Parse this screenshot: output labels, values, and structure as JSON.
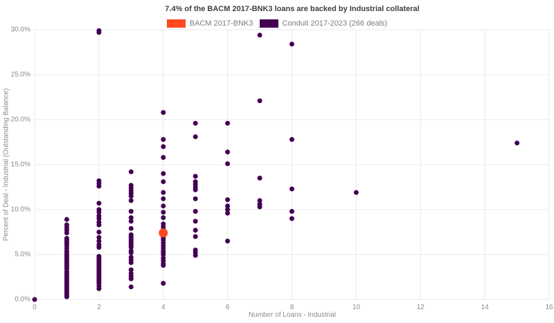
{
  "title": "7.4% of the BACM 2017-BNK3 loans are backed by Industrial collateral",
  "legend": [
    {
      "label": "BACM 2017-BNK3",
      "color": "#FF4720"
    },
    {
      "label": "Conduit 2017-2023 (266 deals)",
      "color": "#440154"
    }
  ],
  "chart_data": {
    "type": "scatter",
    "title": "7.4% of the BACM 2017-BNK3 loans are backed by Industrial collateral",
    "xlabel": "Number of Loans - Industrial",
    "ylabel": "Percent of Deal - Industrial (Outstanding Balance)",
    "xlim": [
      0,
      16
    ],
    "ylim": [
      0,
      30
    ],
    "grid": true,
    "legend_position": "top-center",
    "x_ticks": [
      {
        "v": 0,
        "label": "0"
      },
      {
        "v": 2,
        "label": "2"
      },
      {
        "v": 4,
        "label": "4"
      },
      {
        "v": 6,
        "label": "6"
      },
      {
        "v": 8,
        "label": "8"
      },
      {
        "v": 10,
        "label": "10"
      },
      {
        "v": 12,
        "label": "12"
      },
      {
        "v": 14,
        "label": "14"
      },
      {
        "v": 16,
        "label": "16"
      }
    ],
    "y_ticks": [
      {
        "v": 0,
        "label": "0.0%"
      },
      {
        "v": 5,
        "label": "5.0%"
      },
      {
        "v": 10,
        "label": "10.0%"
      },
      {
        "v": 15,
        "label": "15.0%"
      },
      {
        "v": 20,
        "label": "20.0%"
      },
      {
        "v": 25,
        "label": "25.0%"
      },
      {
        "v": 30,
        "label": "30.0%"
      }
    ],
    "series": [
      {
        "name": "Conduit 2017-2023 (266 deals)",
        "color": "#440154",
        "points": [
          [
            0,
            0.0
          ],
          [
            1,
            8.9
          ],
          [
            1,
            8.3
          ],
          [
            1,
            8.0
          ],
          [
            1,
            7.7
          ],
          [
            1,
            7.4
          ],
          [
            1,
            6.8
          ],
          [
            1,
            6.6
          ],
          [
            1,
            6.4
          ],
          [
            1,
            6.2
          ],
          [
            1,
            6.0
          ],
          [
            1,
            5.7
          ],
          [
            1,
            5.4
          ],
          [
            1,
            5.2
          ],
          [
            1,
            5.0
          ],
          [
            1,
            4.8
          ],
          [
            1,
            4.6
          ],
          [
            1,
            4.4
          ],
          [
            1,
            4.2
          ],
          [
            1,
            4.0
          ],
          [
            1,
            3.8
          ],
          [
            1,
            3.6
          ],
          [
            1,
            3.4
          ],
          [
            1,
            3.1
          ],
          [
            1,
            2.9
          ],
          [
            1,
            2.7
          ],
          [
            1,
            2.5
          ],
          [
            1,
            2.3
          ],
          [
            1,
            2.1
          ],
          [
            1,
            1.9
          ],
          [
            1,
            1.7
          ],
          [
            1,
            1.5
          ],
          [
            1,
            1.3
          ],
          [
            1,
            1.1
          ],
          [
            1,
            0.9
          ],
          [
            1,
            0.7
          ],
          [
            1,
            0.5
          ],
          [
            1,
            0.3
          ],
          [
            2,
            29.9
          ],
          [
            2,
            29.7
          ],
          [
            2,
            13.2
          ],
          [
            2,
            12.9
          ],
          [
            2,
            12.6
          ],
          [
            2,
            10.7
          ],
          [
            2,
            10.0
          ],
          [
            2,
            9.7
          ],
          [
            2,
            9.3
          ],
          [
            2,
            9.0
          ],
          [
            2,
            8.6
          ],
          [
            2,
            8.3
          ],
          [
            2,
            7.5
          ],
          [
            2,
            6.9
          ],
          [
            2,
            6.5
          ],
          [
            2,
            6.1
          ],
          [
            2,
            5.8
          ],
          [
            2,
            4.8
          ],
          [
            2,
            4.6
          ],
          [
            2,
            4.4
          ],
          [
            2,
            4.2
          ],
          [
            2,
            4.0
          ],
          [
            2,
            3.8
          ],
          [
            2,
            3.6
          ],
          [
            2,
            3.4
          ],
          [
            2,
            3.2
          ],
          [
            2,
            3.0
          ],
          [
            2,
            2.8
          ],
          [
            2,
            2.6
          ],
          [
            2,
            2.4
          ],
          [
            2,
            2.2
          ],
          [
            2,
            2.0
          ],
          [
            2,
            1.8
          ],
          [
            2,
            1.5
          ],
          [
            2,
            1.2
          ],
          [
            3,
            14.2
          ],
          [
            3,
            12.7
          ],
          [
            3,
            12.4
          ],
          [
            3,
            12.1
          ],
          [
            3,
            11.8
          ],
          [
            3,
            11.5
          ],
          [
            3,
            11.0
          ],
          [
            3,
            9.8
          ],
          [
            3,
            9.1
          ],
          [
            3,
            8.7
          ],
          [
            3,
            7.9
          ],
          [
            3,
            7.2
          ],
          [
            3,
            7.0
          ],
          [
            3,
            6.8
          ],
          [
            3,
            6.6
          ],
          [
            3,
            6.4
          ],
          [
            3,
            6.2
          ],
          [
            3,
            6.0
          ],
          [
            3,
            5.8
          ],
          [
            3,
            5.4
          ],
          [
            3,
            5.2
          ],
          [
            3,
            4.7
          ],
          [
            3,
            4.4
          ],
          [
            3,
            4.1
          ],
          [
            3,
            3.3
          ],
          [
            3,
            2.9
          ],
          [
            3,
            2.6
          ],
          [
            3,
            2.3
          ],
          [
            3,
            1.4
          ],
          [
            4,
            20.8
          ],
          [
            4,
            17.8
          ],
          [
            4,
            17.0
          ],
          [
            4,
            15.8
          ],
          [
            4,
            14.0
          ],
          [
            4,
            13.1
          ],
          [
            4,
            11.9
          ],
          [
            4,
            11.2
          ],
          [
            4,
            10.4
          ],
          [
            4,
            9.7
          ],
          [
            4,
            9.1
          ],
          [
            4,
            8.4
          ],
          [
            4,
            8.1
          ],
          [
            4,
            7.8
          ],
          [
            4,
            7.6
          ],
          [
            4,
            7.4
          ],
          [
            4,
            7.2
          ],
          [
            4,
            7.0
          ],
          [
            4,
            6.8
          ],
          [
            4,
            6.6
          ],
          [
            4,
            6.3
          ],
          [
            4,
            6.0
          ],
          [
            4,
            5.7
          ],
          [
            4,
            5.4
          ],
          [
            4,
            5.2
          ],
          [
            4,
            5.0
          ],
          [
            4,
            4.6
          ],
          [
            4,
            4.3
          ],
          [
            4,
            4.0
          ],
          [
            4,
            3.8
          ],
          [
            4,
            1.8
          ],
          [
            5,
            19.6
          ],
          [
            5,
            18.1
          ],
          [
            5,
            13.7
          ],
          [
            5,
            13.1
          ],
          [
            5,
            12.8
          ],
          [
            5,
            12.5
          ],
          [
            5,
            12.2
          ],
          [
            5,
            11.2
          ],
          [
            5,
            9.8
          ],
          [
            5,
            8.7
          ],
          [
            5,
            7.7
          ],
          [
            5,
            7.0
          ],
          [
            5,
            5.5
          ],
          [
            5,
            5.2
          ],
          [
            5,
            4.9
          ],
          [
            6,
            19.6
          ],
          [
            6,
            16.4
          ],
          [
            6,
            15.1
          ],
          [
            6,
            11.1
          ],
          [
            6,
            10.4
          ],
          [
            6,
            10.0
          ],
          [
            6,
            9.6
          ],
          [
            6,
            6.5
          ],
          [
            7,
            29.4
          ],
          [
            7,
            22.1
          ],
          [
            7,
            13.5
          ],
          [
            7,
            11.0
          ],
          [
            7,
            10.6
          ],
          [
            7,
            10.3
          ],
          [
            8,
            28.4
          ],
          [
            8,
            17.8
          ],
          [
            8,
            12.3
          ],
          [
            8,
            9.8
          ],
          [
            8,
            9.0
          ],
          [
            10,
            11.9
          ],
          [
            15,
            17.4
          ]
        ]
      },
      {
        "name": "BACM 2017-BNK3",
        "color": "#FF4720",
        "points": [
          [
            4,
            7.4
          ]
        ]
      }
    ]
  }
}
